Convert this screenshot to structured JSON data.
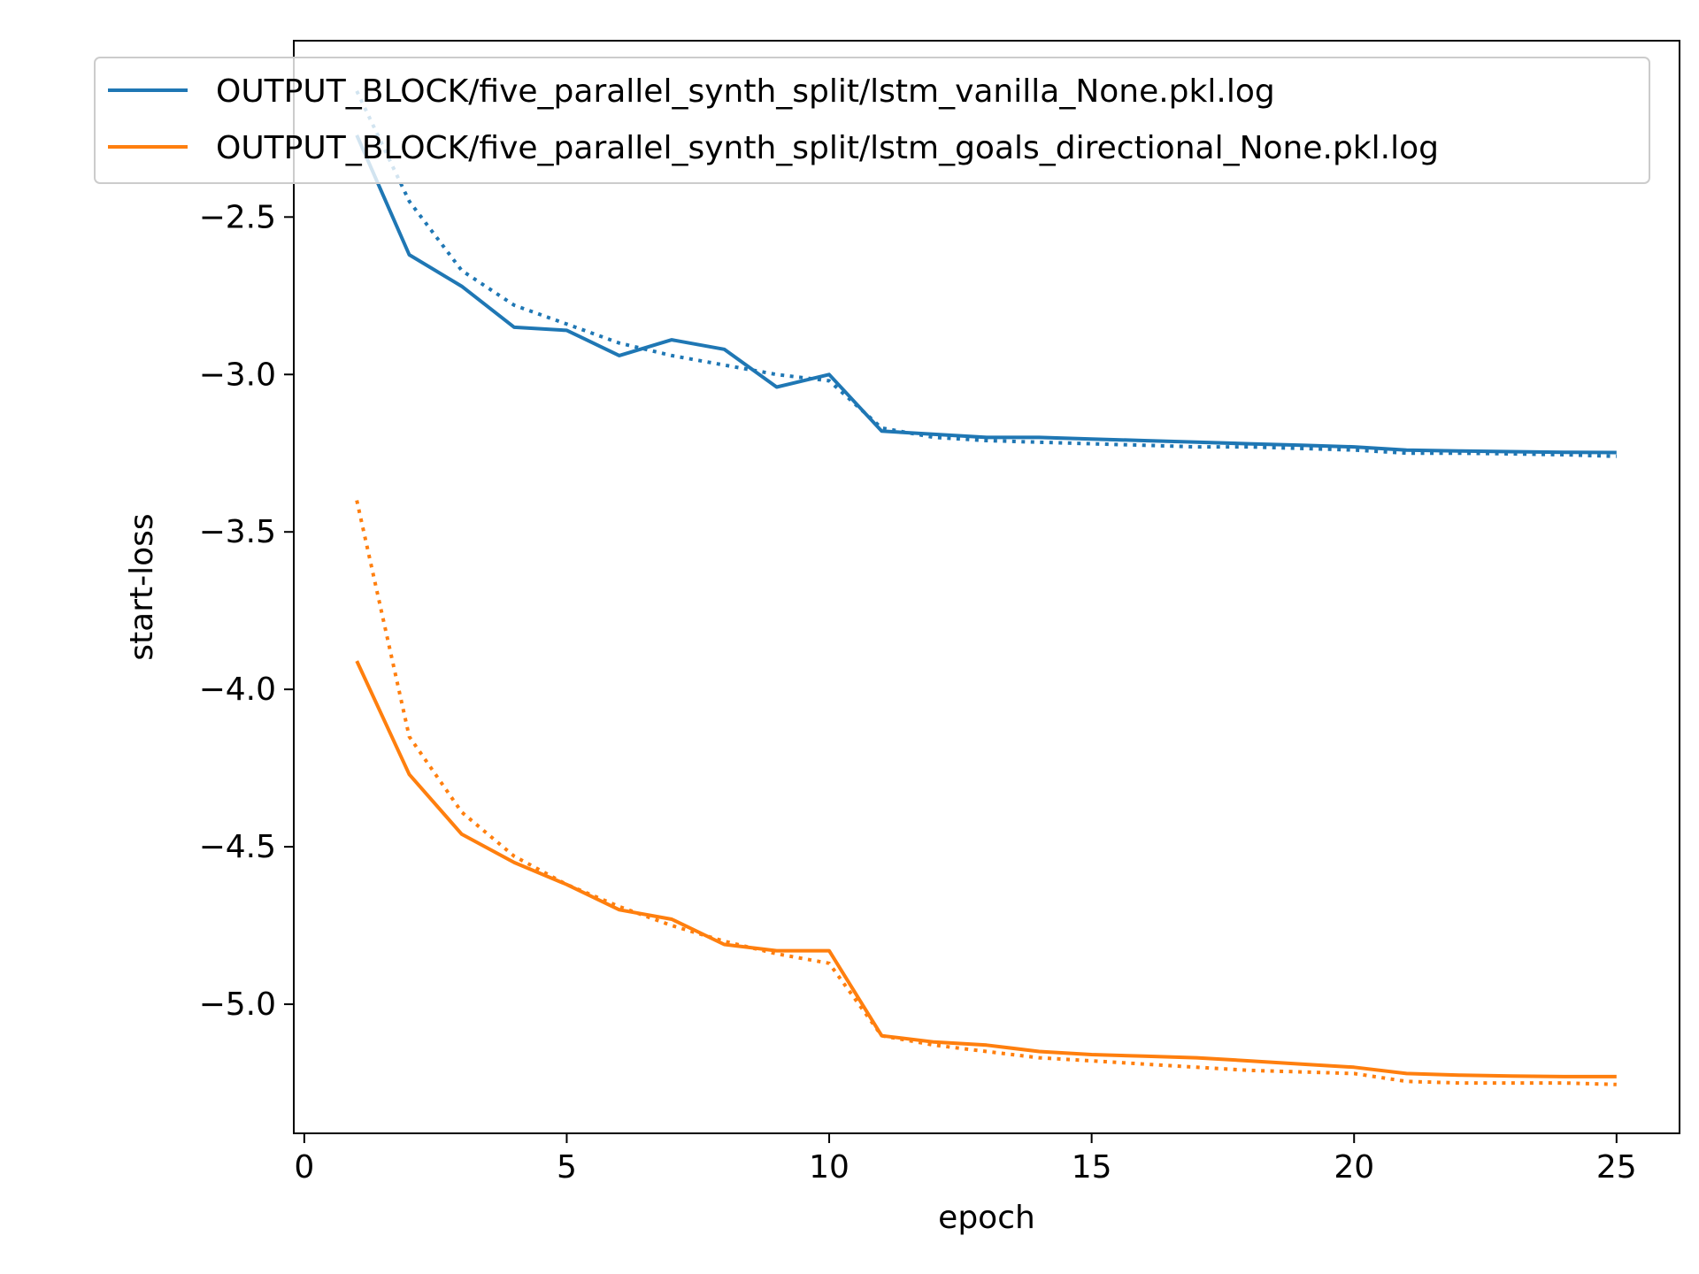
{
  "chart_data": {
    "type": "line",
    "title": "",
    "xlabel": "epoch",
    "ylabel": "start-loss",
    "xlim": [
      -0.2,
      26.2
    ],
    "ylim": [
      -5.41,
      -1.94
    ],
    "xticks": [
      0,
      5,
      10,
      15,
      20,
      25
    ],
    "xtick_labels": [
      "0",
      "5",
      "10",
      "15",
      "20",
      "25"
    ],
    "yticks": [
      -5.0,
      -4.5,
      -4.0,
      -3.5,
      -3.0,
      -2.5
    ],
    "ytick_labels": [
      "−5.0",
      "−4.5",
      "−4.0",
      "−3.5",
      "−3.0",
      "−2.5"
    ],
    "grid": false,
    "legend_position": "top",
    "x": [
      1,
      2,
      3,
      4,
      5,
      6,
      7,
      8,
      9,
      10,
      11,
      12,
      13,
      14,
      15,
      16,
      17,
      18,
      19,
      20,
      21,
      22,
      23,
      24,
      25
    ],
    "series": [
      {
        "name": "OUTPUT_BLOCK/five_parallel_synth_split/lstm_vanilla_None.pkl.log",
        "color": "#1f77b4",
        "style": "solid",
        "in_legend": true,
        "values": [
          -2.24,
          -2.62,
          -2.72,
          -2.85,
          -2.86,
          -2.94,
          -2.89,
          -2.92,
          -3.04,
          -3.0,
          -3.18,
          -3.19,
          -3.2,
          -3.2,
          -3.205,
          -3.21,
          -3.215,
          -3.22,
          -3.225,
          -3.23,
          -3.24,
          -3.243,
          -3.245,
          -3.247,
          -3.248
        ]
      },
      {
        "name": "",
        "color": "#1f77b4",
        "style": "dotted",
        "in_legend": false,
        "values": [
          -2.1,
          -2.45,
          -2.67,
          -2.78,
          -2.84,
          -2.9,
          -2.94,
          -2.97,
          -3.0,
          -3.02,
          -3.17,
          -3.2,
          -3.21,
          -3.215,
          -3.22,
          -3.225,
          -3.23,
          -3.23,
          -3.235,
          -3.24,
          -3.25,
          -3.25,
          -3.252,
          -3.255,
          -3.26
        ]
      },
      {
        "name": "OUTPUT_BLOCK/five_parallel_synth_split/lstm_goals_directional_None.pkl.log",
        "color": "#ff7f0e",
        "style": "solid",
        "in_legend": true,
        "values": [
          -3.91,
          -4.27,
          -4.46,
          -4.55,
          -4.62,
          -4.7,
          -4.73,
          -4.81,
          -4.83,
          -4.83,
          -5.1,
          -5.12,
          -5.13,
          -5.15,
          -5.16,
          -5.165,
          -5.17,
          -5.18,
          -5.19,
          -5.2,
          -5.22,
          -5.225,
          -5.228,
          -5.23,
          -5.23
        ]
      },
      {
        "name": "",
        "color": "#ff7f0e",
        "style": "dotted",
        "in_legend": false,
        "values": [
          -3.4,
          -4.15,
          -4.39,
          -4.53,
          -4.62,
          -4.69,
          -4.75,
          -4.8,
          -4.84,
          -4.87,
          -5.1,
          -5.13,
          -5.15,
          -5.17,
          -5.18,
          -5.19,
          -5.2,
          -5.21,
          -5.215,
          -5.22,
          -5.245,
          -5.25,
          -5.25,
          -5.25,
          -5.255
        ]
      }
    ]
  }
}
